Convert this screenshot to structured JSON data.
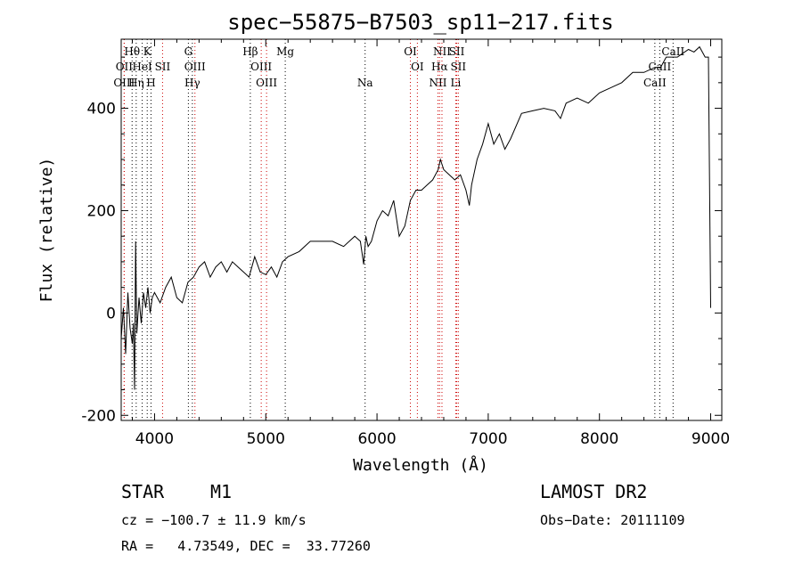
{
  "chart_data": {
    "type": "line",
    "title": "spec−55875−B7503_sp11−217.fits",
    "xlabel": "Wavelength (Å)",
    "ylabel": "Flux (relative)",
    "xlim": [
      3700,
      9100
    ],
    "ylim": [
      -210,
      535
    ],
    "xticks": [
      4000,
      5000,
      6000,
      7000,
      8000,
      9000
    ],
    "yticks": [
      -200,
      0,
      200,
      400
    ],
    "grid": false,
    "series": [
      {
        "x": [
          3700,
          3720,
          3740,
          3760,
          3780,
          3800,
          3810,
          3820,
          3830,
          3840,
          3860,
          3880,
          3900,
          3920,
          3940,
          3960,
          3980,
          4000,
          4050,
          4100,
          4150,
          4200,
          4250,
          4300,
          4350,
          4400,
          4450,
          4500,
          4550,
          4600,
          4650,
          4700,
          4750,
          4800,
          4850,
          4900,
          4950,
          5000,
          5050,
          5100,
          5150,
          5200,
          5300,
          5400,
          5500,
          5600,
          5700,
          5800,
          5850,
          5880,
          5900,
          5920,
          5950,
          6000,
          6050,
          6100,
          6150,
          6200,
          6250,
          6300,
          6350,
          6400,
          6450,
          6500,
          6550,
          6570,
          6600,
          6650,
          6700,
          6750,
          6800,
          6830,
          6850,
          6900,
          6950,
          7000,
          7050,
          7100,
          7150,
          7200,
          7300,
          7400,
          7500,
          7600,
          7650,
          7700,
          7800,
          7900,
          8000,
          8100,
          8200,
          8300,
          8400,
          8500,
          8550,
          8600,
          8700,
          8800,
          8850,
          8900,
          8950,
          8980,
          9000
        ],
        "y": [
          -50,
          10,
          -80,
          40,
          -30,
          -60,
          -20,
          -150,
          140,
          -40,
          30,
          -20,
          40,
          10,
          50,
          0,
          30,
          40,
          20,
          50,
          70,
          30,
          20,
          60,
          70,
          90,
          100,
          70,
          90,
          100,
          80,
          100,
          90,
          80,
          70,
          110,
          80,
          75,
          90,
          70,
          100,
          110,
          120,
          140,
          140,
          140,
          130,
          150,
          140,
          95,
          150,
          130,
          140,
          180,
          200,
          190,
          220,
          150,
          170,
          220,
          240,
          240,
          250,
          260,
          280,
          300,
          280,
          270,
          260,
          270,
          240,
          210,
          250,
          300,
          330,
          370,
          330,
          350,
          320,
          340,
          390,
          395,
          400,
          395,
          380,
          410,
          420,
          410,
          430,
          440,
          450,
          470,
          470,
          480,
          480,
          500,
          500,
          515,
          510,
          520,
          500,
          500,
          10
        ]
      }
    ],
    "line_markers": [
      {
        "name": "Hθ",
        "x": 3798,
        "color": "#000000",
        "row": 1
      },
      {
        "name": "K",
        "x": 3934,
        "color": "#000000",
        "row": 1
      },
      {
        "name": "G",
        "x": 4304,
        "color": "#000000",
        "row": 1
      },
      {
        "name": "Hβ",
        "x": 4861,
        "color": "#000000",
        "row": 1
      },
      {
        "name": "Mg",
        "x": 5175,
        "color": "#000000",
        "row": 1
      },
      {
        "name": "OI",
        "x": 6300,
        "color": "#cc0000",
        "row": 1
      },
      {
        "name": "NII",
        "x": 6584,
        "color": "#cc0000",
        "row": 1
      },
      {
        "name": "SII",
        "x": 6717,
        "color": "#cc0000",
        "row": 1
      },
      {
        "name": "CaII",
        "x": 8662,
        "color": "#000000",
        "row": 1
      },
      {
        "name": "OII",
        "x": 3727,
        "color": "#cc0000",
        "row": 2
      },
      {
        "name": "HeI",
        "x": 3889,
        "color": "#000000",
        "row": 2
      },
      {
        "name": "SII",
        "x": 4072,
        "color": "#cc0000",
        "row": 2
      },
      {
        "name": "OIII",
        "x": 4363,
        "color": "#cc0000",
        "row": 2
      },
      {
        "name": "OIII",
        "x": 4959,
        "color": "#cc0000",
        "row": 2
      },
      {
        "name": "OI",
        "x": 6363,
        "color": "#cc0000",
        "row": 2
      },
      {
        "name": "Hα",
        "x": 6563,
        "color": "#cc0000",
        "row": 2
      },
      {
        "name": "SII",
        "x": 6731,
        "color": "#cc0000",
        "row": 2
      },
      {
        "name": "CaII",
        "x": 8542,
        "color": "#000000",
        "row": 2
      },
      {
        "name": "OIII",
        "x": 3727,
        "color": "#cc0000",
        "row": 3
      },
      {
        "name": "Hη",
        "x": 3835,
        "color": "#000000",
        "row": 3
      },
      {
        "name": "H",
        "x": 3968,
        "color": "#000000",
        "row": 3
      },
      {
        "name": "Hγ",
        "x": 4340,
        "color": "#000000",
        "row": 3
      },
      {
        "name": "OIII",
        "x": 5007,
        "color": "#cc0000",
        "row": 3
      },
      {
        "name": "Na",
        "x": 5893,
        "color": "#000000",
        "row": 3
      },
      {
        "name": "NII",
        "x": 6548,
        "color": "#cc0000",
        "row": 3
      },
      {
        "name": "Li",
        "x": 6708,
        "color": "#cc0000",
        "row": 3
      },
      {
        "name": "CaII",
        "x": 8498,
        "color": "#000000",
        "row": 3
      }
    ]
  },
  "info": {
    "class": "STAR",
    "subclass": "M1",
    "survey": "LAMOST DR2",
    "redshift": "cz = −100.7 ± 11.9 km/s",
    "obs_date": "Obs−Date: 20111109",
    "coords": "RA =   4.73549, DEC =  33.77260"
  }
}
